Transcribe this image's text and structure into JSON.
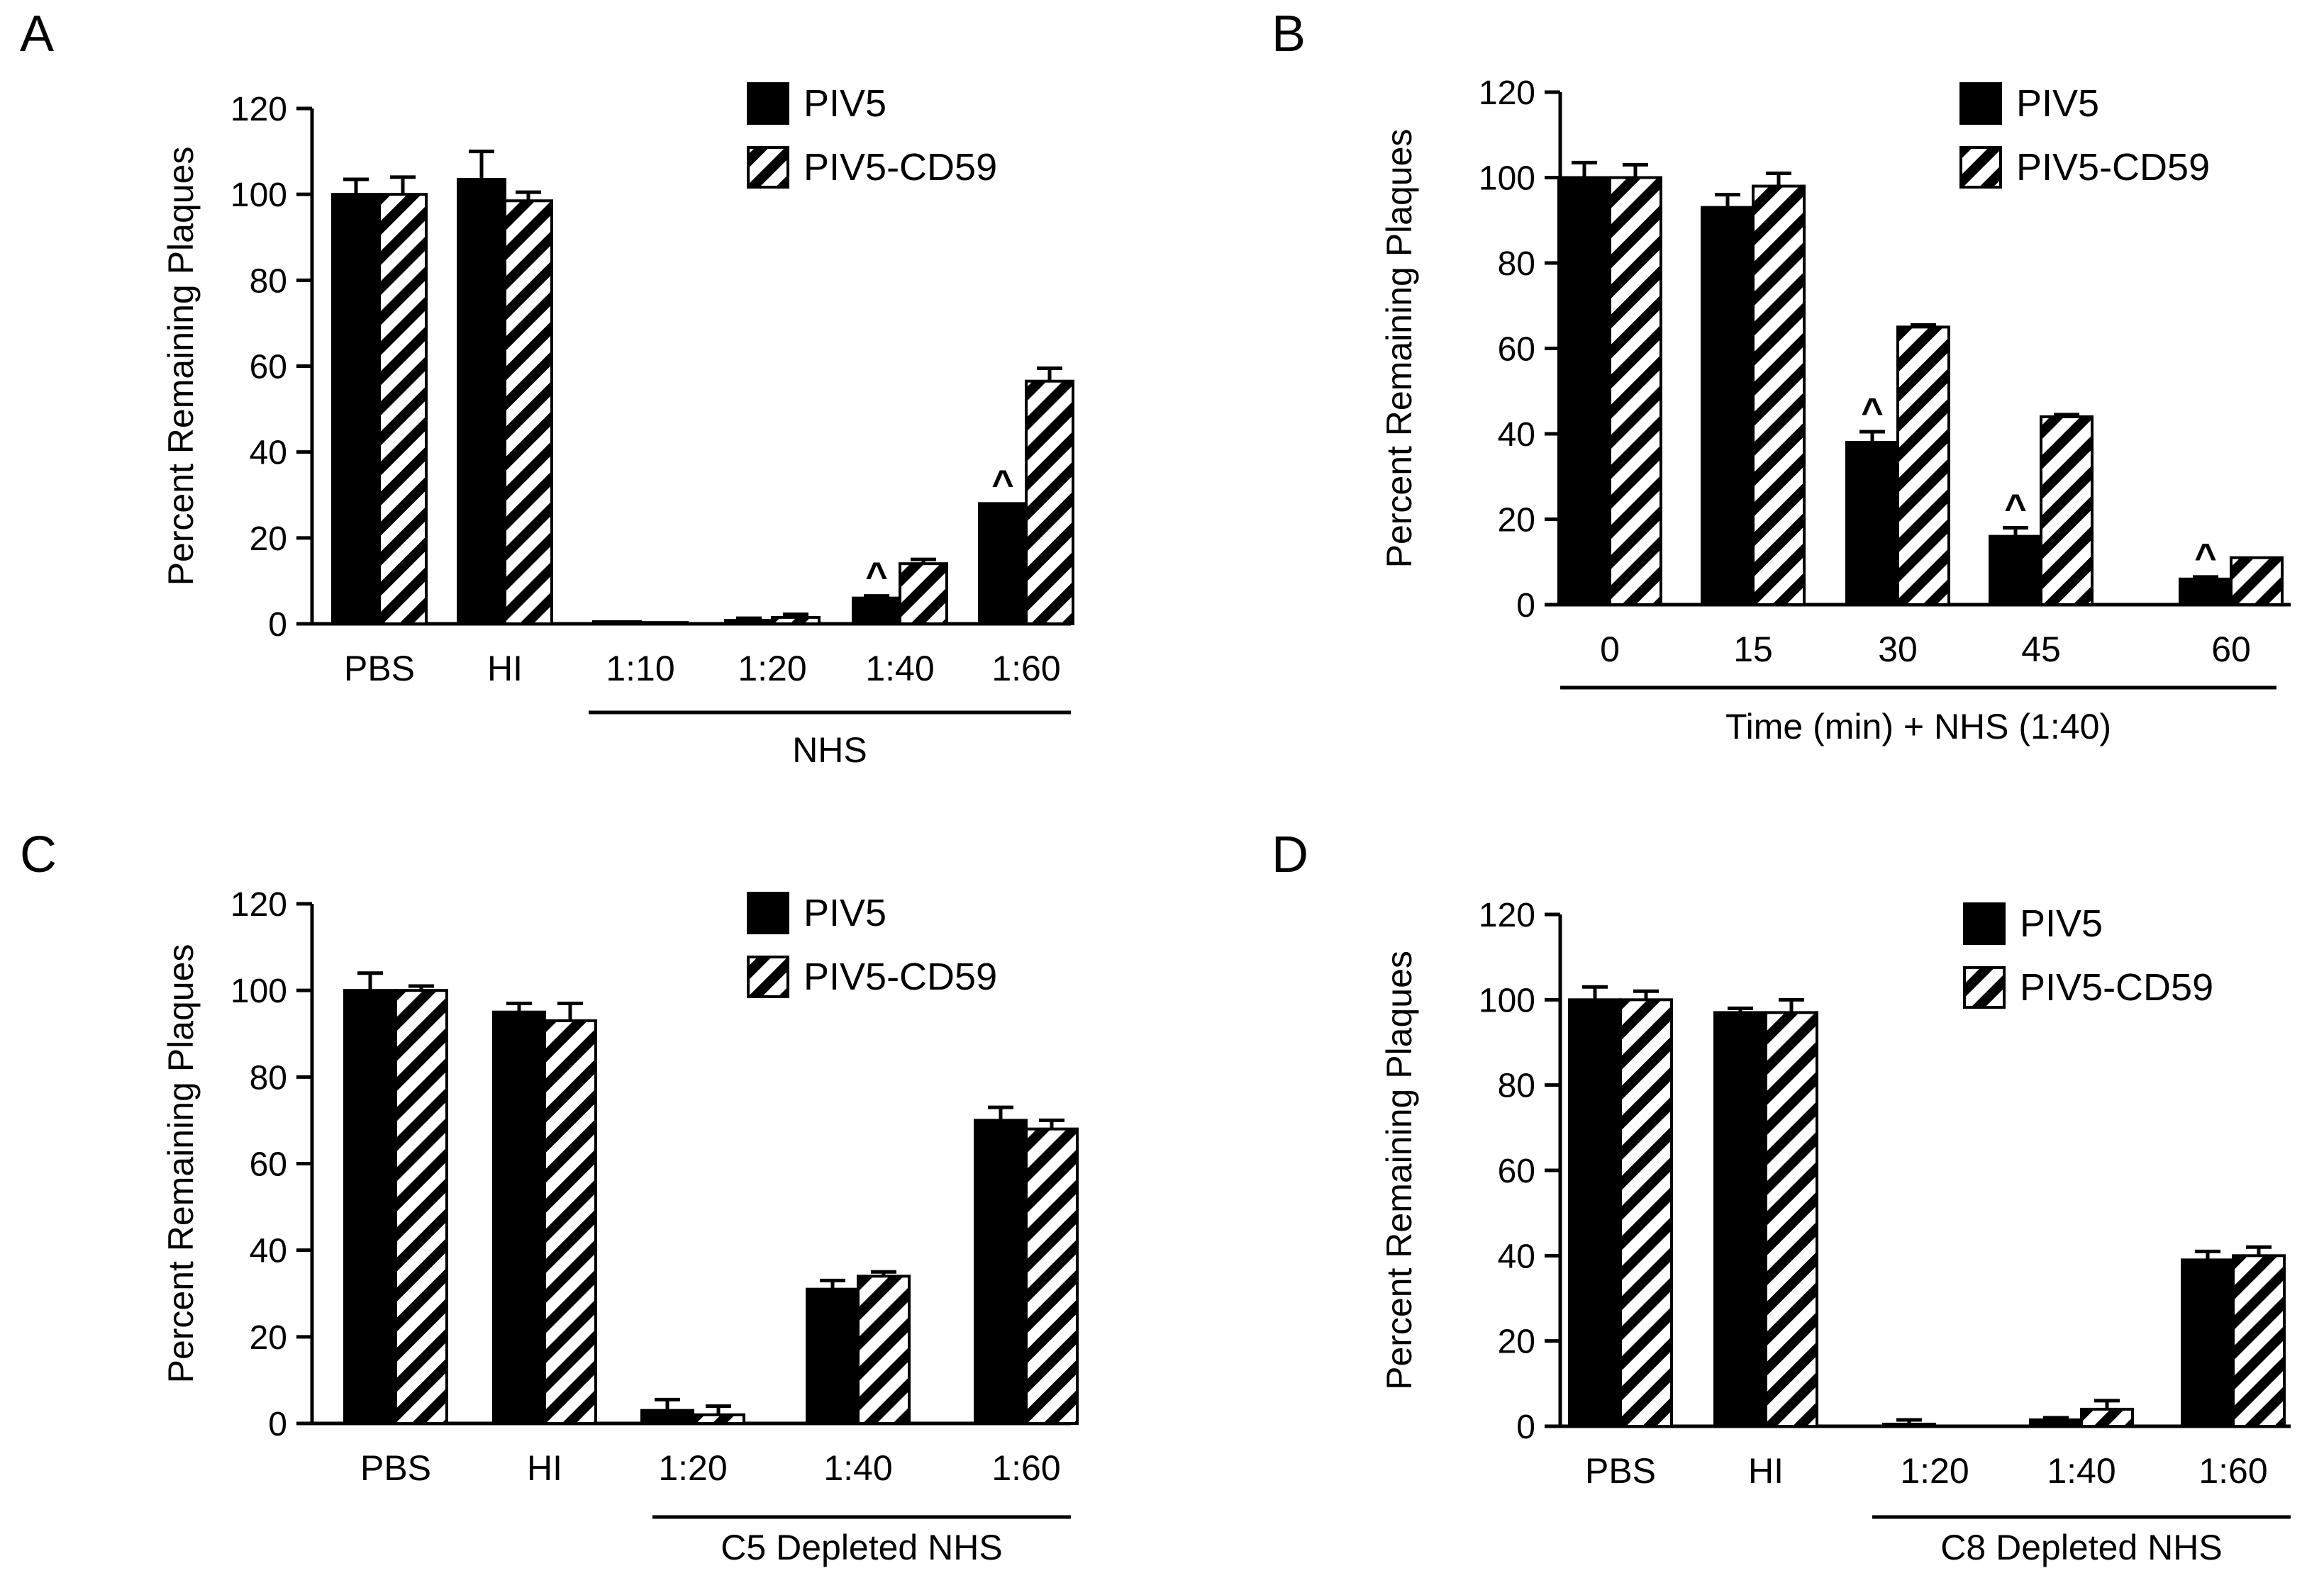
{
  "chart_data": [
    {
      "panel_letter": "A",
      "type": "bar",
      "ylabel": "Percent Remaining Plaques",
      "ylim": [
        0,
        120
      ],
      "yticks": [
        "0",
        "20",
        "40",
        "60",
        "80",
        "100",
        "120"
      ],
      "categories": [
        "PBS",
        "HI",
        "1:10",
        "1:20",
        "1:40",
        "1:60"
      ],
      "group_label": "NHS",
      "group_span": [
        2,
        5
      ],
      "legend": [
        "PIV5",
        "PIV5-CD59"
      ],
      "series": [
        {
          "name": "PIV5",
          "values": [
            100,
            103.5,
            0.5,
            0.8,
            6,
            28
          ],
          "errors": [
            3.5,
            6.5,
            0,
            0.5,
            0.5,
            0
          ],
          "marks": [
            "",
            "",
            "",
            "",
            "^",
            "^"
          ]
        },
        {
          "name": "PIV5-CD59",
          "values": [
            100,
            98.5,
            0.3,
            1.5,
            14,
            56.5
          ],
          "errors": [
            4,
            2,
            0,
            0.7,
            1,
            3
          ]
        }
      ]
    },
    {
      "panel_letter": "B",
      "type": "bar",
      "ylabel": "Percent Remaining Plaques",
      "ylim": [
        0,
        120
      ],
      "yticks": [
        "0",
        "20",
        "40",
        "60",
        "80",
        "100",
        "120"
      ],
      "categories": [
        "0",
        "15",
        "30",
        "45",
        "60"
      ],
      "group_label": "Time (min) + NHS (1:40)",
      "group_span": [
        0,
        4
      ],
      "legend": [
        "PIV5",
        "PIV5-CD59"
      ],
      "series": [
        {
          "name": "PIV5",
          "values": [
            100,
            93,
            38,
            16,
            6
          ],
          "errors": [
            3.5,
            3,
            2.5,
            2,
            0.5
          ],
          "marks": [
            "",
            "",
            "^",
            "^",
            "^"
          ]
        },
        {
          "name": "PIV5-CD59",
          "values": [
            100,
            98,
            65,
            44,
            11
          ],
          "errors": [
            3,
            3,
            0.5,
            0.5,
            0
          ]
        }
      ]
    },
    {
      "panel_letter": "C",
      "type": "bar",
      "ylabel": "Percent Remaining Plaques",
      "ylim": [
        0,
        120
      ],
      "yticks": [
        "0",
        "20",
        "40",
        "60",
        "80",
        "100",
        "120"
      ],
      "categories": [
        "PBS",
        "HI",
        "1:20",
        "1:40",
        "1:60"
      ],
      "group_label": "C5 Depleted NHS",
      "group_span": [
        2,
        4
      ],
      "legend": [
        "PIV5",
        "PIV5-CD59"
      ],
      "series": [
        {
          "name": "PIV5",
          "values": [
            100,
            95,
            3,
            31,
            70
          ],
          "errors": [
            4,
            2,
            2.5,
            2,
            3
          ]
        },
        {
          "name": "PIV5-CD59",
          "values": [
            100,
            93,
            2,
            34,
            68
          ],
          "errors": [
            1,
            4,
            2,
            1,
            2
          ]
        }
      ]
    },
    {
      "panel_letter": "D",
      "type": "bar",
      "ylabel": "Percent Remaining Plaques",
      "ylim": [
        0,
        120
      ],
      "yticks": [
        "0",
        "20",
        "40",
        "60",
        "80",
        "100",
        "120"
      ],
      "categories": [
        "PBS",
        "HI",
        "1:20",
        "1:40",
        "1:60"
      ],
      "group_label": "C8 Depleted NHS",
      "group_span": [
        2,
        4
      ],
      "legend": [
        "PIV5",
        "PIV5-CD59"
      ],
      "series": [
        {
          "name": "PIV5",
          "values": [
            100,
            97,
            0.5,
            1.5,
            39
          ],
          "errors": [
            3,
            1,
            1,
            0.5,
            2
          ]
        },
        {
          "name": "PIV5-CD59",
          "values": [
            100,
            97,
            0,
            4,
            40
          ],
          "errors": [
            2,
            3,
            0,
            2,
            2
          ]
        }
      ]
    }
  ]
}
